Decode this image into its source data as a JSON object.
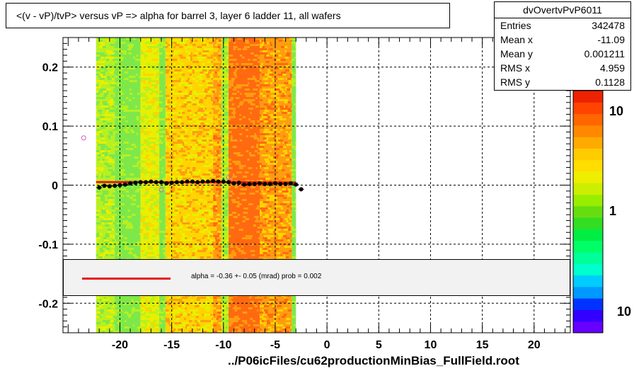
{
  "title": "<(v - vP)/tvP> versus   vP => alpha for barrel 3, layer 6 ladder 11, all wafers",
  "stats": {
    "name": "dvOvertvPvP6011",
    "rows": [
      {
        "key": "Entries",
        "value": "342478"
      },
      {
        "key": "Mean x",
        "value": "-11.09"
      },
      {
        "key": "Mean y",
        "value": "0.001211"
      },
      {
        "key": "RMS x",
        "value": "4.959"
      },
      {
        "key": "RMS y",
        "value": "0.1128"
      }
    ]
  },
  "fit": {
    "label": "alpha =   -0.36 +-  0.05 (mrad) prob = 0.002",
    "color": "#e8161a"
  },
  "footer": "../P06icFiles/cu62productionMinBias_FullField.root",
  "chart_data": {
    "type": "heatmap",
    "xlim": [
      -25.5,
      23.5
    ],
    "ylim": [
      -0.25,
      0.25
    ],
    "x_ticks": [
      -20,
      -15,
      -10,
      -5,
      0,
      5,
      10,
      15,
      20
    ],
    "y_ticks": [
      0.2,
      0.1,
      0,
      -0.1,
      -0.2
    ],
    "x_tick_labels": [
      "-20",
      "-15",
      "-10",
      "-5",
      "0",
      "5",
      "10",
      "15",
      "20"
    ],
    "y_tick_labels": [
      "0.2",
      "0.1",
      "0",
      "-0.1",
      "-0.2"
    ],
    "grid": true,
    "heatmap_x_range": [
      -22.3,
      -3.0
    ],
    "color_scale": {
      "log": true,
      "labels": [
        "10",
        "1",
        "10"
      ],
      "colors": [
        "#6600ff",
        "#3300ff",
        "#0033ff",
        "#0099ff",
        "#00ccff",
        "#00ffcc",
        "#00ff99",
        "#00ff66",
        "#00ee44",
        "#33dd22",
        "#66dd11",
        "#99ee00",
        "#ccee00",
        "#eeee00",
        "#ffdd00",
        "#ffcc00",
        "#ffaa00",
        "#ff8800",
        "#ff6600",
        "#ff4400",
        "#ee2200"
      ]
    },
    "band_colors": [
      "#7ee84a",
      "#b8f020",
      "#e8f000",
      "#ffd400",
      "#ff9d10",
      "#ff6a10"
    ],
    "bands": [
      {
        "x0": -22.3,
        "x1": -20.5,
        "level": 1
      },
      {
        "x0": -20.5,
        "x1": -18.0,
        "level": 0
      },
      {
        "x0": -18.0,
        "x1": -16.2,
        "level": 2
      },
      {
        "x0": -16.2,
        "x1": -15.6,
        "level": 0
      },
      {
        "x0": -15.6,
        "x1": -13.0,
        "level": 3
      },
      {
        "x0": -13.0,
        "x1": -11.0,
        "level": 3
      },
      {
        "x0": -11.0,
        "x1": -10.2,
        "level": 4
      },
      {
        "x0": -10.2,
        "x1": -9.5,
        "level": 1
      },
      {
        "x0": -9.5,
        "x1": -6.5,
        "level": 5
      },
      {
        "x0": -6.5,
        "x1": -3.4,
        "level": 4
      },
      {
        "x0": -3.4,
        "x1": -3.0,
        "level": 0
      }
    ],
    "profile_x": [
      -22.0,
      -21.5,
      -21.0,
      -20.5,
      -20.0,
      -19.5,
      -19.0,
      -18.5,
      -18.0,
      -17.5,
      -17.0,
      -16.5,
      -16.0,
      -15.5,
      -15.0,
      -14.5,
      -14.0,
      -13.5,
      -13.0,
      -12.5,
      -12.0,
      -11.5,
      -11.0,
      -10.5,
      -10.0,
      -9.5,
      -9.0,
      -8.5,
      -8.0,
      -7.5,
      -7.0,
      -6.5,
      -6.0,
      -5.5,
      -5.0,
      -4.5,
      -4.0,
      -3.5,
      -3.0,
      -2.5
    ],
    "profile_y": [
      -0.004,
      -0.001,
      -0.002,
      -0.001,
      0.0,
      0.001,
      0.003,
      0.004,
      0.005,
      0.005,
      0.006,
      0.005,
      0.005,
      0.003,
      0.004,
      0.005,
      0.005,
      0.006,
      0.006,
      0.005,
      0.006,
      0.006,
      0.007,
      0.006,
      0.006,
      0.005,
      0.003,
      0.004,
      0.001,
      0.002,
      0.002,
      0.003,
      0.002,
      0.002,
      0.003,
      0.002,
      0.002,
      0.003,
      0.001,
      -0.007
    ],
    "fit_line": {
      "x": [
        -22.3,
        -3.0
      ],
      "y": [
        0.0052,
        0.0045
      ]
    },
    "outliers": [
      {
        "x": -23.5,
        "y": 0.08
      },
      {
        "x": -16.0,
        "y": -0.008
      },
      {
        "x": -9.5,
        "y": 0.013
      }
    ]
  }
}
